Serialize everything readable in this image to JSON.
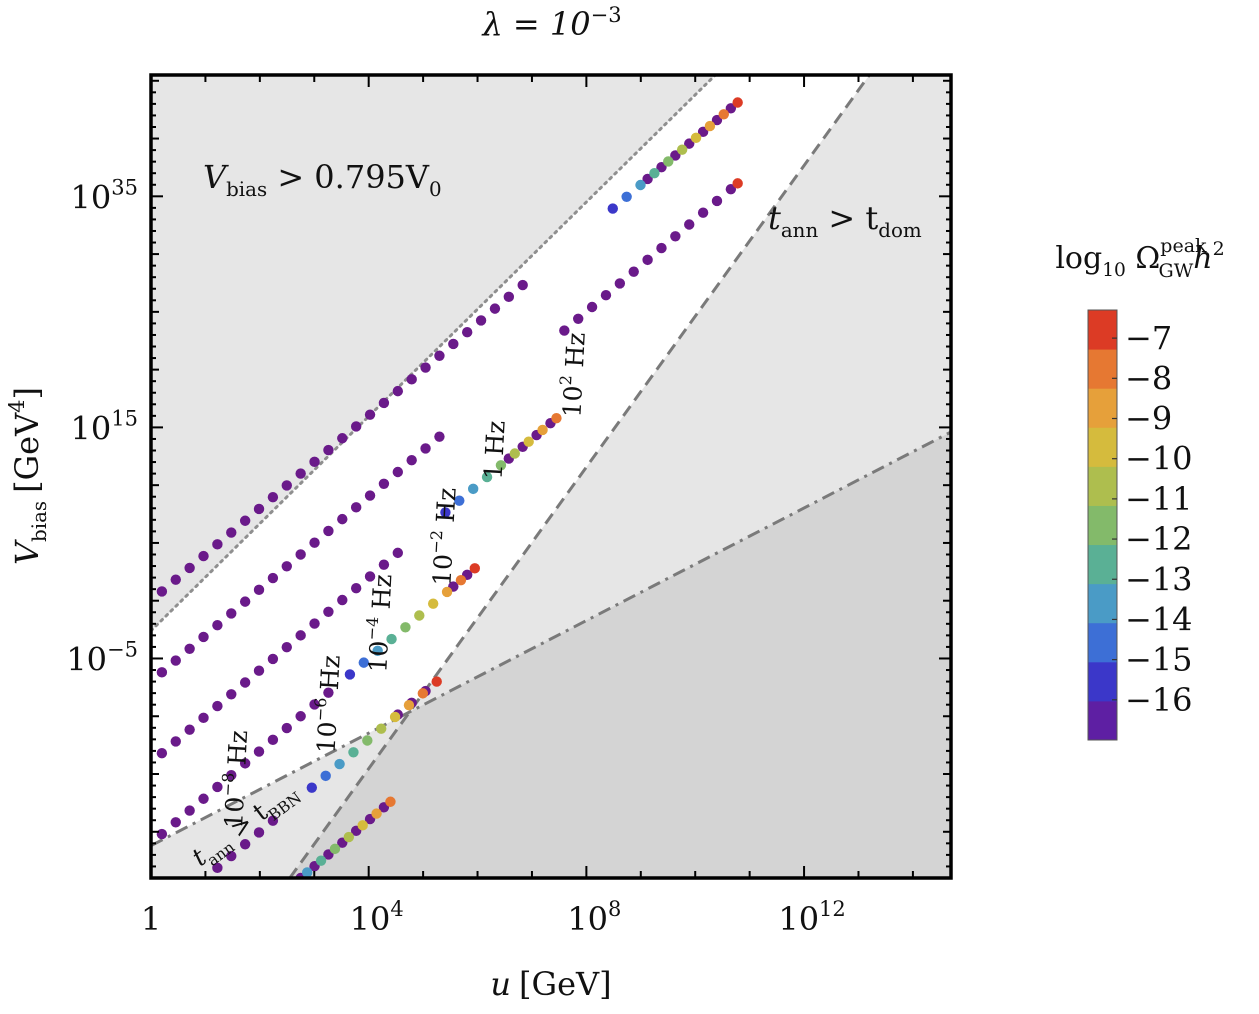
{
  "chart_data": {
    "type": "scatter",
    "title": "λ = 10",
    "title_exponent": "−3",
    "xlabel_var": "u",
    "xlabel_unit": "[GeV]",
    "ylabel_var": "V",
    "ylabel_sub": "bias",
    "ylabel_unit_open": "[GeV",
    "ylabel_unit_exp": "4",
    "ylabel_unit_close": "]",
    "x_scale": "log10",
    "y_scale": "log10",
    "xlim": [
      0,
      14.7
    ],
    "ylim": [
      -24,
      45.5
    ],
    "x_ticks": [
      {
        "value": 0,
        "base": "1",
        "exp": ""
      },
      {
        "value": 4,
        "base": "10",
        "exp": "4"
      },
      {
        "value": 8,
        "base": "10",
        "exp": "8"
      },
      {
        "value": 12,
        "base": "10",
        "exp": "12"
      }
    ],
    "y_ticks": [
      {
        "value": -5,
        "base": "10",
        "exp": "−5"
      },
      {
        "value": 15,
        "base": "10",
        "exp": "15"
      },
      {
        "value": 35,
        "base": "10",
        "exp": "35"
      }
    ],
    "regions": [
      {
        "name": "vbias-excluded",
        "label_var": "V",
        "label_sub": "bias",
        "label_rest": " > 0.795V",
        "label_sub2": "0",
        "fill": "#e6e6e6"
      },
      {
        "name": "tdom-excluded",
        "label_var": "t",
        "label_sub": "ann",
        "label_rest": " > t",
        "label_sub2": "dom",
        "fill": "#e6e6e6"
      },
      {
        "name": "tbbn-excluded",
        "label_var": "t",
        "label_sub": "ann",
        "label_rest": " > t",
        "label_sub2": "BBN",
        "fill": "#d4d4d4"
      }
    ],
    "boundary_lines": [
      {
        "name": "vbias-bound",
        "style": "dotted",
        "points": [
          [
            0,
            -2.6
          ],
          [
            10.37,
            45.5
          ]
        ]
      },
      {
        "name": "tdom-bound",
        "style": "dashed",
        "points": [
          [
            2.55,
            -24
          ],
          [
            13.2,
            45.5
          ]
        ]
      },
      {
        "name": "tbbn-bound",
        "style": "dashdot",
        "points": [
          [
            0,
            -21.2
          ],
          [
            14.7,
            14.6
          ]
        ]
      }
    ],
    "series": [
      {
        "name": "10^2 Hz",
        "label_base": "10",
        "label_exp": "2",
        "label_unit": " Hz",
        "label_pos": [
          7.93,
          19.5
        ],
        "x_range": [
          0.2,
          10.78
        ],
        "y_offset": -4.0,
        "colored_from_x": 10.78,
        "colored_values": [
          -16,
          -15,
          -14,
          -13,
          -12,
          -11,
          -10,
          -9,
          -8,
          -7
        ]
      },
      {
        "name": "1 Hz",
        "label_base": "",
        "label_exp": "",
        "label_unit": "1 Hz",
        "label_pos": [
          6.47,
          13.0
        ],
        "x_range": [
          0.2,
          10.78
        ],
        "y_offset": -11.0,
        "colored_from_x": 10.78,
        "colored_values": [
          -7
        ]
      },
      {
        "name": "10^-2 Hz",
        "label_base": "10",
        "label_exp": "−2",
        "label_unit": " Hz",
        "label_pos": [
          5.55,
          5.5
        ],
        "x_range": [
          0.2,
          7.45
        ],
        "y_offset": -18.0,
        "colored_from_x": 7.45,
        "colored_values": [
          -16,
          -15,
          -14,
          -13,
          -12,
          -11,
          -10,
          -9,
          -8
        ]
      },
      {
        "name": "10^-4 Hz",
        "label_base": "10",
        "label_exp": "−4",
        "label_unit": " Hz",
        "label_pos": [
          4.37,
          -2.0
        ],
        "x_range": [
          0.2,
          5.95
        ],
        "y_offset": -25.0,
        "colored_from_x": 5.95,
        "colored_values": [
          -16,
          -15,
          -14,
          -13,
          -12,
          -11,
          -10,
          -9,
          -8,
          -7
        ]
      },
      {
        "name": "10^-6 Hz",
        "label_base": "10",
        "label_exp": "−6",
        "label_unit": " Hz",
        "label_pos": [
          3.42,
          -9.0
        ],
        "x_range": [
          0.2,
          5.25
        ],
        "y_offset": -32.0,
        "colored_from_x": 5.25,
        "colored_values": [
          -16,
          -15,
          -14,
          -13,
          -12,
          -11,
          -10,
          -9,
          -8,
          -7
        ]
      },
      {
        "name": "10^-8 Hz",
        "label_base": "10",
        "label_exp": "−8",
        "label_unit": " Hz",
        "label_pos": [
          1.72,
          -15.5
        ],
        "x_range": [
          0.2,
          4.4
        ],
        "y_offset": -39.0,
        "colored_from_x": 4.4,
        "colored_values": [
          -15,
          -14,
          -13,
          -12,
          -11,
          -10,
          -9,
          -8
        ]
      }
    ],
    "colorbar": {
      "label_pre": "log",
      "label_log_sub": "10",
      "label_omega": " Ω",
      "label_sup": "peak",
      "label_sub": "GW",
      "label_post": "h",
      "label_post_exp": "2",
      "range": [
        -17,
        -6.3
      ],
      "ticks": [
        "−7",
        "−8",
        "−9",
        "−10",
        "−11",
        "−12",
        "−13",
        "−14",
        "−15",
        "−16"
      ],
      "tick_values": [
        -7,
        -8,
        -9,
        -10,
        -11,
        -12,
        -13,
        -14,
        -15,
        -16
      ],
      "colors": [
        "#5e1fa3",
        "#3b37c9",
        "#3d6fd6",
        "#4a9bc6",
        "#5ab095",
        "#83ba6a",
        "#aebe4e",
        "#d5bb3d",
        "#e6a03a",
        "#e67832",
        "#dc3b25"
      ]
    },
    "default_point_color": "#6a1a8a"
  }
}
